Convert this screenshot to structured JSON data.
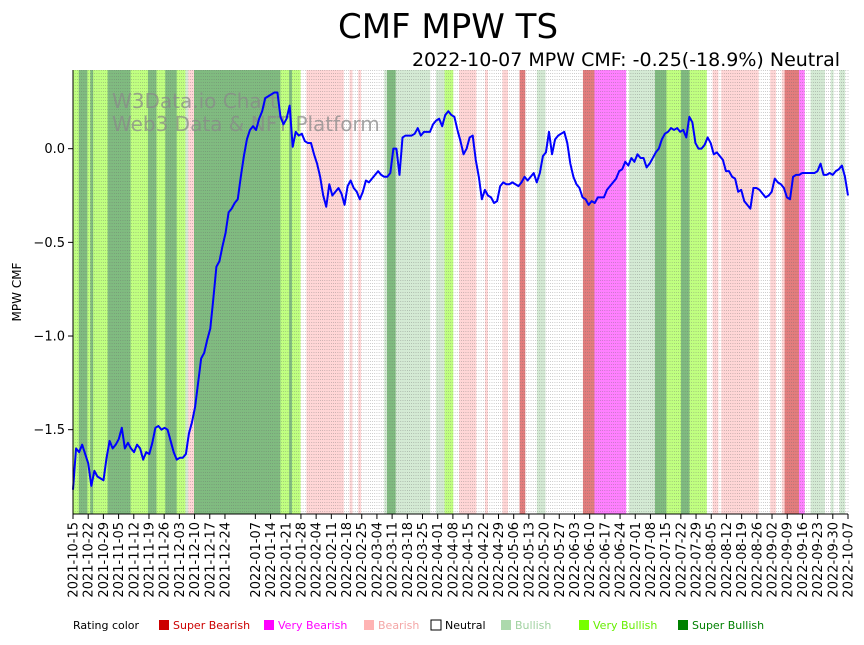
{
  "chart_data": {
    "type": "line",
    "title": "CMF MPW TS",
    "subtitle": "2022-10-07 MPW CMF: -0.25(-18.9%) Neutral",
    "xlabel": "",
    "ylabel": "MPW CMF",
    "ylim": [
      -1.95,
      0.42
    ],
    "yticks": [
      0.0,
      -0.5,
      -1.0,
      -1.5
    ],
    "ytick_labels": [
      "0.0",
      "−0.5",
      "−1.0",
      "−1.5"
    ],
    "x_start": "2021-10-15",
    "x_end": "2022-10-07",
    "xtick_labels": [
      "2021-10-15",
      "2021-10-22",
      "2021-10-29",
      "2021-11-05",
      "2021-11-12",
      "2021-11-19",
      "2021-11-26",
      "2021-12-03",
      "2021-12-10",
      "2021-12-17",
      "2021-12-24",
      "2022-01-07",
      "2022-01-14",
      "2022-01-21",
      "2022-01-28",
      "2022-02-04",
      "2022-02-11",
      "2022-02-18",
      "2022-02-25",
      "2022-03-04",
      "2022-03-11",
      "2022-03-18",
      "2022-03-25",
      "2022-04-01",
      "2022-04-08",
      "2022-04-15",
      "2022-04-22",
      "2022-04-29",
      "2022-05-06",
      "2022-05-13",
      "2022-05-20",
      "2022-05-27",
      "2022-06-03",
      "2022-06-10",
      "2022-06-17",
      "2022-06-24",
      "2022-07-01",
      "2022-07-08",
      "2022-07-15",
      "2022-07-22",
      "2022-07-29",
      "2022-08-05",
      "2022-08-12",
      "2022-08-19",
      "2022-08-26",
      "2022-09-02",
      "2022-09-09",
      "2022-09-16",
      "2022-09-23",
      "2022-09-30",
      "2022-10-07"
    ],
    "watermark": [
      "W3Data.io Chart",
      "Web3 Data & NFT Platform"
    ],
    "series": [
      {
        "name": "MPW CMF",
        "color": "#0000ff",
        "values": [
          -1.82,
          -1.6,
          -1.62,
          -1.58,
          -1.63,
          -1.68,
          -1.8,
          -1.72,
          -1.75,
          -1.76,
          -1.77,
          -1.65,
          -1.56,
          -1.6,
          -1.58,
          -1.55,
          -1.49,
          -1.6,
          -1.57,
          -1.6,
          -1.62,
          -1.58,
          -1.6,
          -1.66,
          -1.62,
          -1.63,
          -1.57,
          -1.49,
          -1.48,
          -1.5,
          -1.49,
          -1.5,
          -1.56,
          -1.62,
          -1.66,
          -1.65,
          -1.65,
          -1.63,
          -1.52,
          -1.46,
          -1.38,
          -1.25,
          -1.12,
          -1.09,
          -1.02,
          -0.96,
          -0.8,
          -0.63,
          -0.6,
          -0.52,
          -0.45,
          -0.34,
          -0.32,
          -0.29,
          -0.27,
          -0.15,
          -0.04,
          0.05,
          0.1,
          0.12,
          0.1,
          0.16,
          0.2,
          0.27,
          0.28,
          0.29,
          0.3,
          0.3,
          0.17,
          0.13,
          0.16,
          0.23,
          0.01,
          0.09,
          0.07,
          0.08,
          0.04,
          0.03,
          0.03,
          -0.03,
          -0.08,
          -0.15,
          -0.25,
          -0.31,
          -0.19,
          -0.25,
          -0.23,
          -0.21,
          -0.24,
          -0.3,
          -0.2,
          -0.17,
          -0.21,
          -0.23,
          -0.27,
          -0.23,
          -0.17,
          -0.18,
          -0.16,
          -0.14,
          -0.12,
          -0.14,
          -0.15,
          -0.15,
          -0.13,
          0.0,
          0.0,
          -0.14,
          0.06,
          0.07,
          0.07,
          0.07,
          0.08,
          0.11,
          0.07,
          0.09,
          0.09,
          0.09,
          0.13,
          0.15,
          0.16,
          0.12,
          0.18,
          0.2,
          0.18,
          0.17,
          0.1,
          0.04,
          -0.03,
          0.0,
          0.06,
          0.07,
          -0.06,
          -0.15,
          -0.27,
          -0.22,
          -0.25,
          -0.26,
          -0.29,
          -0.28,
          -0.2,
          -0.18,
          -0.19,
          -0.19,
          -0.18,
          -0.19,
          -0.2,
          -0.18,
          -0.15,
          -0.17,
          -0.15,
          -0.13,
          -0.18,
          -0.13,
          -0.04,
          -0.02,
          0.09,
          -0.03,
          0.05,
          0.07,
          0.08,
          0.09,
          0.03,
          -0.08,
          -0.15,
          -0.19,
          -0.21,
          -0.26,
          -0.27,
          -0.3,
          -0.28,
          -0.29,
          -0.26,
          -0.26,
          -0.26,
          -0.22,
          -0.2,
          -0.18,
          -0.16,
          -0.12,
          -0.11,
          -0.07,
          -0.09,
          -0.05,
          -0.07,
          -0.03,
          -0.05,
          -0.05,
          -0.1,
          -0.08,
          -0.05,
          -0.02,
          0.0,
          0.05,
          0.08,
          0.09,
          0.11,
          0.1,
          0.11,
          0.09,
          0.1,
          0.06,
          0.17,
          0.14,
          0.03,
          0.0,
          0.0,
          0.02,
          0.06,
          0.03,
          -0.03,
          -0.02,
          -0.04,
          -0.06,
          -0.12,
          -0.12,
          -0.15,
          -0.16,
          -0.23,
          -0.22,
          -0.28,
          -0.3,
          -0.32,
          -0.21,
          -0.21,
          -0.22,
          -0.24,
          -0.26,
          -0.25,
          -0.23,
          -0.16,
          -0.18,
          -0.19,
          -0.21,
          -0.26,
          -0.27,
          -0.15,
          -0.14,
          -0.14,
          -0.13,
          -0.13,
          -0.13,
          -0.13,
          -0.13,
          -0.12,
          -0.08,
          -0.14,
          -0.14,
          -0.13,
          -0.14,
          -0.12,
          -0.11,
          -0.09,
          -0.15,
          -0.25
        ]
      }
    ],
    "ratings": [
      "vb",
      "vb",
      "sb",
      "sb",
      "sb",
      "vb",
      "sb",
      "vb",
      "vb",
      "vb",
      "vb",
      "vb",
      "sb",
      "sb",
      "sb",
      "sb",
      "sb",
      "sb",
      "sb",
      "sb",
      "vb",
      "vb",
      "vb",
      "vb",
      "vb",
      "vb",
      "sb",
      "sb",
      "sb",
      "vb",
      "vb",
      "vb",
      "sb",
      "sb",
      "sb",
      "sb",
      "vb",
      "vb",
      "vb",
      "b",
      "be",
      "be",
      "sb",
      "sb",
      "sb",
      "sb",
      "sb",
      "sb",
      "sb",
      "sb",
      "sb",
      "sb",
      "sb",
      "sb",
      "sb",
      "sb",
      "sb",
      "sb",
      "sb",
      "sb",
      "sb",
      "sb",
      "sb",
      "sb",
      "sb",
      "sb",
      "sb",
      "sb",
      "sb",
      "sb",
      "sb",
      "sb",
      "vb",
      "vb",
      "vb",
      "sb",
      "vb",
      "vb",
      "vb",
      "n",
      "n",
      "be",
      "be",
      "be",
      "be",
      "be",
      "be",
      "be",
      "be",
      "be",
      "be",
      "be",
      "be",
      "be",
      "n",
      "n",
      "be",
      "n",
      "n",
      "be",
      "n",
      "n",
      "n",
      "n",
      "n",
      "n",
      "n",
      "n",
      "b",
      "sb",
      "sb",
      "sb",
      "b",
      "b",
      "b",
      "b",
      "b",
      "b",
      "b",
      "b",
      "b",
      "b",
      "b",
      "b",
      "n",
      "n",
      "b",
      "b",
      "b",
      "vb",
      "vb",
      "vb",
      "n",
      "n",
      "be",
      "be",
      "be",
      "be",
      "be",
      "be",
      "n",
      "n",
      "n",
      "be",
      "n",
      "n",
      "n",
      "n",
      "n",
      "be",
      "be",
      "n",
      "n",
      "n",
      "n",
      "sbe",
      "sbe",
      "n",
      "n",
      "n",
      "n",
      "b",
      "b",
      "b",
      "n",
      "n",
      "n",
      "n",
      "n",
      "n",
      "n",
      "n",
      "n",
      "n",
      "n",
      "n",
      "n",
      "sbe",
      "sbe",
      "sbe",
      "sbe",
      "vbe",
      "vbe",
      "vbe",
      "vbe",
      "vbe",
      "vbe",
      "vbe",
      "vbe",
      "vbe",
      "vbe",
      "vbe",
      "n",
      "b",
      "b",
      "b",
      "b",
      "b",
      "b",
      "b",
      "b",
      "b",
      "sb",
      "sb",
      "sb",
      "sb",
      "vb",
      "vb",
      "vb",
      "vb",
      "vb",
      "sb",
      "sb",
      "sb",
      "vb",
      "vb",
      "vb",
      "vb",
      "vb",
      "vb",
      "n",
      "n",
      "be",
      "be",
      "n",
      "be",
      "be",
      "be",
      "be",
      "be",
      "be",
      "be",
      "be",
      "be",
      "be",
      "be",
      "be",
      "be",
      "n",
      "n",
      "n",
      "n",
      "be",
      "be",
      "n",
      "n",
      "be",
      "sbe",
      "sbe",
      "sbe",
      "sbe",
      "sbe",
      "vbe",
      "vbe",
      "n",
      "n",
      "b",
      "b",
      "b",
      "b",
      "b",
      "n",
      "n",
      "b",
      "n",
      "n",
      "b",
      "b",
      "n"
    ],
    "legend": {
      "label": "Rating color",
      "items": [
        {
          "key": "sbe",
          "name": "Super Bearish",
          "color": "#cc0000",
          "text_color": "#cc0000"
        },
        {
          "key": "vbe",
          "name": "Very Bearish",
          "color": "#ff00ff",
          "text_color": "#ff00ff"
        },
        {
          "key": "be",
          "name": "Bearish",
          "color": "#ffb3b3",
          "text_color": "#f4a6a6"
        },
        {
          "key": "n",
          "name": "Neutral",
          "color": "#ffffff",
          "text_color": "#000000"
        },
        {
          "key": "b",
          "name": "Bullish",
          "color": "#acd9ac",
          "text_color": "#9fd19f"
        },
        {
          "key": "vb",
          "name": "Very Bullish",
          "color": "#77ff00",
          "text_color": "#66ee00"
        },
        {
          "key": "sb",
          "name": "Super Bullish",
          "color": "#008000",
          "text_color": "#008000"
        }
      ]
    },
    "band_colors": {
      "sbe": "#e27d7d",
      "vbe": "#ff80ff",
      "be": "#ffd6d6",
      "n": "#ffffff",
      "b": "#d4ead4",
      "vb": "#c0ff80",
      "sb": "#80bb80"
    }
  }
}
